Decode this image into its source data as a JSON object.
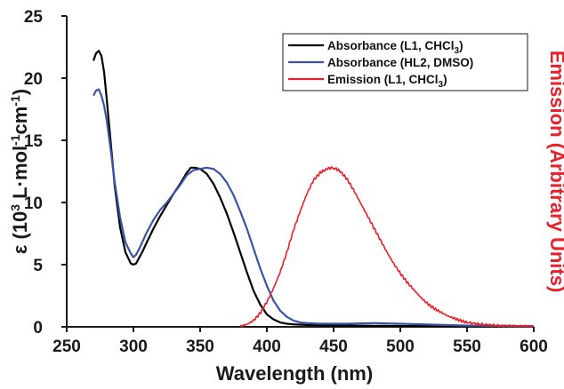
{
  "chart_data": {
    "type": "line",
    "xlabel": "Wavelength (nm)",
    "ylabel_left": {
      "main": "ε (10",
      "sup1": "3",
      "mid": " L·mol",
      "sup2": "-1",
      "mid2": "cm",
      "sup3": "-1",
      "end": ")"
    },
    "ylabel_right": "Emission (Arbitrary Units)",
    "xlim": [
      250,
      600
    ],
    "ylim": [
      0,
      25
    ],
    "x_ticks": [
      "250",
      "300",
      "350",
      "400",
      "450",
      "500",
      "550",
      "600"
    ],
    "y_ticks": [
      "0",
      "5",
      "10",
      "15",
      "20",
      "25"
    ],
    "legend_position": "top-right",
    "series": [
      {
        "name": "Absorbance (L1, CHCl3)",
        "legend": {
          "pre": "Absorbance (L1, CHCl",
          "sub": "3",
          "post": ")"
        },
        "color": "#000000",
        "x": [
          270,
          272,
          274,
          276,
          278,
          280,
          283,
          286,
          290,
          294,
          298,
          300,
          302,
          304,
          307,
          310,
          315,
          320,
          325,
          330,
          335,
          340,
          343,
          346,
          350,
          355,
          360,
          365,
          370,
          375,
          380,
          385,
          390,
          395,
          400,
          405,
          410,
          415,
          420,
          430,
          440,
          460,
          500,
          550,
          600
        ],
        "values": [
          21.4,
          22.0,
          22.2,
          21.8,
          20.5,
          18.3,
          14.8,
          11.3,
          8.0,
          6.0,
          5.1,
          5.0,
          5.1,
          5.5,
          6.1,
          6.8,
          7.9,
          8.9,
          9.8,
          10.7,
          11.5,
          12.4,
          12.8,
          12.8,
          12.7,
          12.3,
          11.5,
          10.4,
          9.1,
          7.6,
          6.0,
          4.4,
          2.9,
          1.8,
          1.0,
          0.6,
          0.35,
          0.25,
          0.2,
          0.15,
          0.12,
          0.1,
          0.07,
          0.05,
          0.05
        ]
      },
      {
        "name": "Absorbance (HL2, DMSO)",
        "legend": {
          "pre": "Absorbance (HL2, DMSO)",
          "sub": "",
          "post": ""
        },
        "color": "#3a53a6",
        "x": [
          270,
          272,
          274,
          276,
          278,
          280,
          283,
          286,
          290,
          294,
          298,
          300,
          302,
          304,
          307,
          310,
          315,
          320,
          325,
          330,
          335,
          340,
          345,
          350,
          355,
          360,
          365,
          370,
          375,
          380,
          385,
          390,
          395,
          400,
          405,
          410,
          415,
          420,
          425,
          430,
          440,
          460,
          480,
          500,
          550,
          600
        ],
        "values": [
          18.6,
          19.0,
          19.1,
          18.6,
          17.8,
          16.6,
          14.2,
          11.6,
          8.8,
          6.8,
          5.9,
          5.6,
          5.8,
          6.2,
          6.9,
          7.6,
          8.6,
          9.4,
          10.0,
          10.7,
          11.4,
          12.2,
          12.6,
          12.7,
          12.8,
          12.7,
          12.3,
          11.6,
          10.6,
          9.3,
          7.9,
          6.3,
          4.7,
          3.3,
          2.1,
          1.3,
          0.8,
          0.5,
          0.35,
          0.3,
          0.25,
          0.25,
          0.3,
          0.25,
          0.1,
          0.05
        ]
      },
      {
        "name": "Emission (L1, CHCl3)",
        "legend": {
          "pre": "Emission (L1, CHCl",
          "sub": "3",
          "post": ")"
        },
        "color": "#e8202a",
        "x": [
          380,
          385,
          390,
          395,
          400,
          405,
          410,
          415,
          420,
          425,
          430,
          435,
          440,
          445,
          448,
          452,
          455,
          460,
          465,
          470,
          475,
          480,
          485,
          490,
          495,
          500,
          505,
          510,
          515,
          520,
          525,
          530,
          535,
          540,
          545,
          550,
          560,
          570,
          580,
          590,
          600
        ],
        "values": [
          0.05,
          0.2,
          0.5,
          1.1,
          2.0,
          3.1,
          4.4,
          6.0,
          7.8,
          9.3,
          10.7,
          11.8,
          12.4,
          12.7,
          12.8,
          12.7,
          12.5,
          11.9,
          11.0,
          10.0,
          9.0,
          8.0,
          7.0,
          6.0,
          5.1,
          4.3,
          3.6,
          3.0,
          2.4,
          1.9,
          1.5,
          1.2,
          0.9,
          0.7,
          0.5,
          0.35,
          0.2,
          0.12,
          0.08,
          0.05,
          0.04
        ]
      }
    ]
  }
}
